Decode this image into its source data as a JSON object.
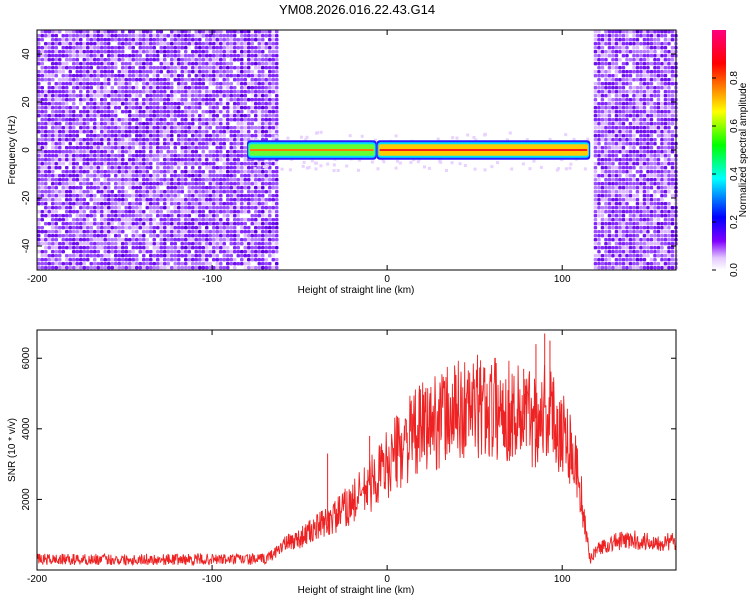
{
  "title": "YM08.2026.016.22.43.G14",
  "chart_data": [
    {
      "type": "heatmap",
      "xlabel": "Height of straight line (km)",
      "ylabel": "Frequency (Hz)",
      "xlim": [
        -200,
        165
      ],
      "ylim": [
        -50,
        50
      ],
      "xticks": [
        -200,
        -100,
        0,
        100
      ],
      "yticks": [
        -40,
        -20,
        0,
        20,
        40
      ],
      "signal_band_hz": [
        -2,
        2
      ],
      "noise_regions_km": [
        [
          -200,
          -62
        ],
        [
          118,
          165
        ]
      ],
      "signal_segments": [
        {
          "x_start": -80,
          "x_end": -6,
          "peak": 0.55
        },
        {
          "x_start": -6,
          "x_end": 116,
          "peak": 1.0
        }
      ],
      "colorbar": {
        "label": "Normalized spectral amplitude",
        "range": [
          0,
          1
        ],
        "ticks": [
          "0.0",
          "0.2",
          "0.4",
          "0.6",
          "0.8"
        ],
        "colors": [
          "#ffffff",
          "#e4c9ff",
          "#8000ff",
          "#0000ff",
          "#00ffff",
          "#00ff00",
          "#ffff00",
          "#ff8000",
          "#ff0000",
          "#ff0080"
        ]
      }
    },
    {
      "type": "line",
      "xlabel": "Height of straight line (km)",
      "ylabel": "SNR (10 * v/v)",
      "xlim": [
        -200,
        165
      ],
      "ylim": [
        0,
        6800
      ],
      "xticks": [
        -200,
        -100,
        0,
        100
      ],
      "yticks": [
        2000,
        4000,
        6000
      ],
      "color": "#ee2222",
      "series": [
        {
          "name": "SNR",
          "x": [
            -200,
            -150,
            -100,
            -70,
            -65,
            -60,
            -50,
            -40,
            -30,
            -20,
            -10,
            0,
            10,
            20,
            30,
            40,
            50,
            60,
            70,
            80,
            85,
            90,
            95,
            100,
            105,
            110,
            113,
            116,
            120,
            130,
            140,
            150,
            160,
            165
          ],
          "values": [
            300,
            300,
            300,
            300,
            450,
            700,
            900,
            1200,
            1500,
            1900,
            2400,
            3000,
            3600,
            4000,
            4300,
            4500,
            4600,
            4600,
            4500,
            4400,
            4300,
            4600,
            4300,
            4000,
            3500,
            2500,
            1200,
            300,
            600,
            800,
            850,
            800,
            800,
            800
          ]
        }
      ],
      "spikes": [
        {
          "x": -34,
          "y": 3300
        },
        {
          "x": -10,
          "y": 3800
        },
        {
          "x": 78,
          "y": 5700
        },
        {
          "x": 85,
          "y": 6400
        },
        {
          "x": 90,
          "y": 6700
        },
        {
          "x": 93,
          "y": 6500
        }
      ]
    }
  ]
}
